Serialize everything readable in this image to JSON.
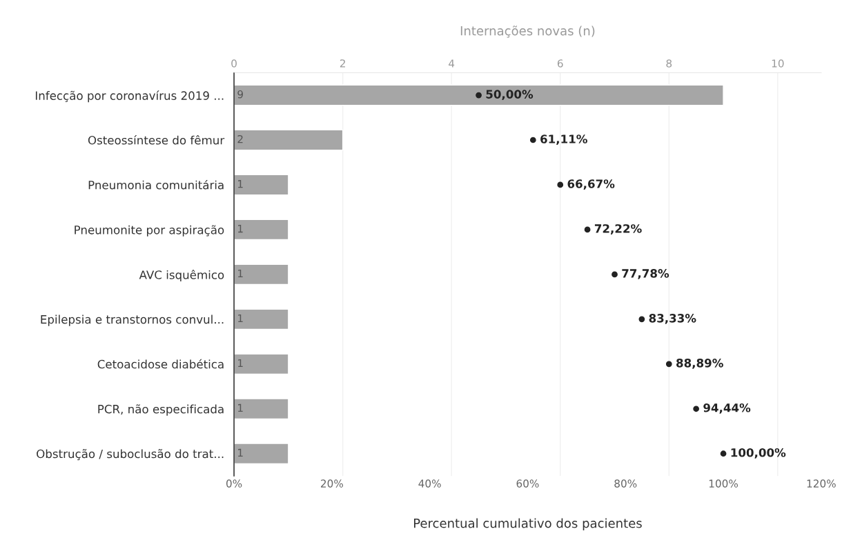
{
  "chart_data": {
    "type": "bar",
    "orientation": "horizontal",
    "categories": [
      "Infecção por coronavírus 2019 ...",
      "Osteossíntese do fêmur",
      "Pneumonia comunitária",
      "Pneumonite por aspiração",
      "AVC isquêmico",
      "Epilepsia e transtornos convul...",
      "Cetoacidose diabética",
      "PCR, não especificada",
      "Obstrução / suboclusão do trat..."
    ],
    "series": [
      {
        "axis": "x2",
        "color": "#a6a6a6",
        "values": [
          9,
          2,
          1,
          1,
          1,
          1,
          1,
          1,
          1
        ],
        "value_labels": [
          "9",
          "2",
          "1",
          "1",
          "1",
          "1",
          "1",
          "1",
          "1"
        ]
      },
      {
        "type": "scatter",
        "color": "#222222",
        "values": [
          50.0,
          61.11,
          66.67,
          72.22,
          77.78,
          83.33,
          88.89,
          94.44,
          100.0
        ],
        "value_labels": [
          "50,00%",
          "61,11%",
          "66,67%",
          "72,22%",
          "77,78%",
          "83,33%",
          "88,89%",
          "94,44%",
          "100,00%"
        ]
      }
    ],
    "xlabel": "Percentual cumulativo dos pacientes",
    "x2label": "Internações novas (n)",
    "xlim": [
      0,
      120
    ],
    "xticks": [
      {
        "value": 0,
        "label": "0%"
      },
      {
        "value": 20,
        "label": "20%"
      },
      {
        "value": 40,
        "label": "40%"
      },
      {
        "value": 60,
        "label": "60%"
      },
      {
        "value": 80,
        "label": "80%"
      },
      {
        "value": 100,
        "label": "100%"
      },
      {
        "value": 120,
        "label": "120%"
      }
    ],
    "x2lim": [
      0,
      10.8
    ],
    "x2ticks": [
      0,
      2,
      4,
      6,
      8,
      10
    ],
    "grid": "x2",
    "marker": "circle",
    "legend": false
  }
}
